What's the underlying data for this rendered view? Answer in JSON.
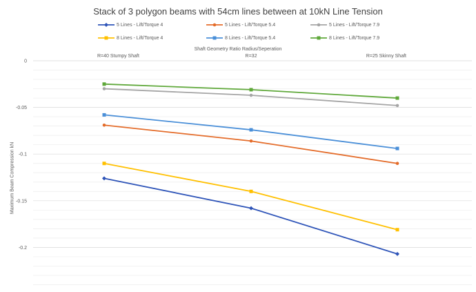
{
  "chart_data": {
    "type": "line",
    "title": "Stack of 3 polygon beams with 54cm lines between at 10kN Line Tension",
    "xlabel": "Shaft Geometry Ratio    Radius/Seperation",
    "ylabel": "Maximum Beam Compression kN",
    "categories": [
      "R=40 Stumpy Shaft",
      "R=32",
      "R=25 Skinny Shaft"
    ],
    "ylim": [
      -0.25,
      0
    ],
    "yticks": [
      "0",
      "-0.05",
      "-0.1",
      "-0.15",
      "-0.2"
    ],
    "grid": true,
    "legend_position": "top",
    "series": [
      {
        "name": "5 Lines  - Lift/Torque 4",
        "color": "#2e54b8",
        "marker": "diamond",
        "values": [
          -0.126,
          -0.158,
          -0.207
        ]
      },
      {
        "name": "5 Lines  - Lift/Torque 5.4",
        "color": "#e46c2a",
        "marker": "circle",
        "values": [
          -0.069,
          -0.086,
          -0.11
        ]
      },
      {
        "name": "5 Lines  - Lift/Torque 7.9",
        "color": "#a5a5a5",
        "marker": "circle",
        "values": [
          -0.03,
          -0.037,
          -0.048
        ]
      },
      {
        "name": "8 Lines - Lift/Torque 4",
        "color": "#ffc000",
        "marker": "square",
        "values": [
          -0.11,
          -0.14,
          -0.181
        ]
      },
      {
        "name": "8 Lines - Lift/Torque 5.4",
        "color": "#4a8fd8",
        "marker": "square",
        "values": [
          -0.058,
          -0.074,
          -0.094
        ]
      },
      {
        "name": "8 Lines - Lift/Torque 7.9",
        "color": "#5fa83a",
        "marker": "square",
        "values": [
          -0.025,
          -0.031,
          -0.04
        ]
      }
    ]
  }
}
